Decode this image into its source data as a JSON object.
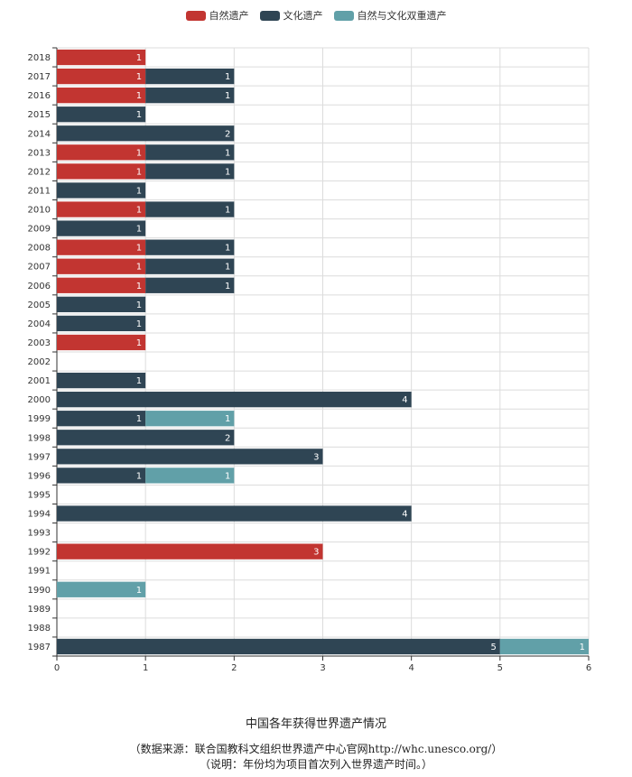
{
  "chart_data": {
    "type": "bar",
    "orientation": "horizontal",
    "stacked": true,
    "title": "中国各年获得世界遗产情况",
    "source": "（数据来源：联合国教科文组织世界遗产中心官网http://whc.unesco.org/）",
    "note": "（说明：年份均为项目首次列入世界遗产时间。）",
    "legend_position": "top-center",
    "grid": true,
    "xlim": [
      0,
      6
    ],
    "x_ticks": [
      "0",
      "1",
      "2",
      "3",
      "4",
      "5",
      "6"
    ],
    "categories": [
      "2018",
      "2017",
      "2016",
      "2015",
      "2014",
      "2013",
      "2012",
      "2011",
      "2010",
      "2009",
      "2008",
      "2007",
      "2006",
      "2005",
      "2004",
      "2003",
      "2002",
      "2001",
      "2000",
      "1999",
      "1998",
      "1997",
      "1996",
      "1995",
      "1994",
      "1993",
      "1992",
      "1991",
      "1990",
      "1989",
      "1988",
      "1987"
    ],
    "series": [
      {
        "name": "自然遗产",
        "color": "#c23531",
        "values": [
          1,
          1,
          1,
          0,
          0,
          1,
          1,
          0,
          1,
          0,
          1,
          1,
          1,
          0,
          0,
          1,
          0,
          0,
          0,
          0,
          0,
          0,
          0,
          0,
          0,
          0,
          3,
          0,
          0,
          0,
          0,
          0
        ]
      },
      {
        "name": "文化遗产",
        "color": "#2f4554",
        "values": [
          0,
          1,
          1,
          1,
          2,
          1,
          1,
          1,
          1,
          1,
          1,
          1,
          1,
          1,
          1,
          0,
          0,
          1,
          4,
          1,
          2,
          3,
          1,
          0,
          4,
          0,
          0,
          0,
          0,
          0,
          0,
          5
        ]
      },
      {
        "name": "自然与文化双重遗产",
        "color": "#61a0a8",
        "values": [
          0,
          0,
          0,
          0,
          0,
          0,
          0,
          0,
          0,
          0,
          0,
          0,
          0,
          0,
          0,
          0,
          0,
          0,
          0,
          1,
          0,
          0,
          1,
          0,
          0,
          0,
          0,
          0,
          1,
          0,
          0,
          1
        ]
      }
    ]
  }
}
